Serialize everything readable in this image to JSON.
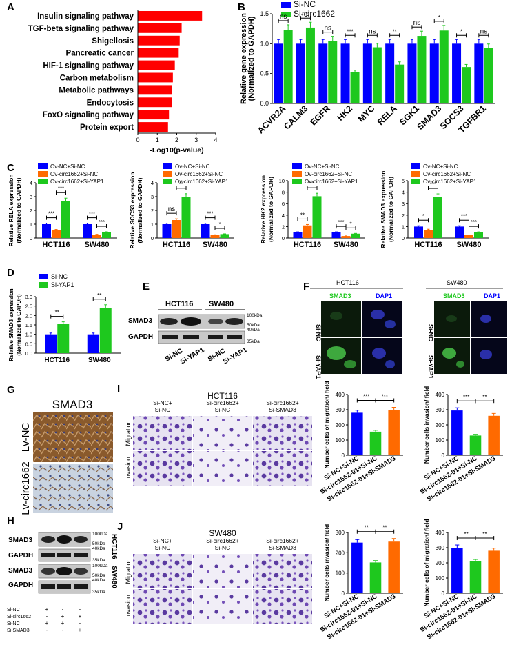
{
  "panel_letters": {
    "A": "A",
    "B": "B",
    "C": "C",
    "D": "D",
    "E": "E",
    "F": "F",
    "G": "G",
    "H": "H",
    "I": "I",
    "J": "J"
  },
  "colors": {
    "red": "#ff0000",
    "blue": "#0000ff",
    "green": "#1ec81e",
    "orange": "#ff6a00",
    "black": "#000000"
  },
  "chart_data": [
    {
      "id": "A",
      "type": "bar",
      "orientation": "horizontal",
      "categories": [
        "Insulin signaling pathway",
        "TGF-beta signaling pathway",
        "Shigellosis",
        "Pancreatic cancer",
        "HIF-1 signaling pathway",
        "Carbon metabolism",
        "Metabolic pathways",
        "Endocytosis",
        "FoxO signaling pathway",
        "Protein export"
      ],
      "values": [
        3.3,
        2.25,
        2.15,
        2.1,
        1.9,
        1.8,
        1.75,
        1.75,
        1.6,
        1.55
      ],
      "xlabel": "-Log10(p-value)",
      "xlim": [
        0,
        4
      ],
      "xticks": [
        "0",
        "1",
        "2",
        "3",
        "4"
      ],
      "color": "#ff0000"
    },
    {
      "id": "B",
      "type": "bar",
      "categories": [
        "ACVR2A",
        "CALM3",
        "EGFR",
        "HK2",
        "MYC",
        "RELA",
        "SGK1",
        "SMAD3",
        "SOCS3",
        "TGFBR1"
      ],
      "series": [
        {
          "name": "Si-NC",
          "values": [
            1,
            1,
            1,
            1,
            1,
            1,
            1,
            1,
            1,
            1
          ]
        },
        {
          "name": "Si-circ1662",
          "values": [
            1.23,
            1.27,
            1.05,
            0.52,
            0.94,
            0.65,
            1.13,
            1.22,
            0.61,
            0.93
          ]
        }
      ],
      "significance": [
        "ns",
        "ns",
        "ns",
        "***",
        "ns",
        "**",
        "ns",
        "*",
        "*",
        "ns"
      ],
      "ylabel": "Relative gene expression\n(Normalized to GAPDH)",
      "ylim": [
        0,
        1.5
      ],
      "yticks": [
        "0.0",
        "0.5",
        "1.0",
        "1.5"
      ]
    },
    {
      "id": "C1",
      "type": "bar",
      "categories": [
        "HCT116",
        "SW480"
      ],
      "series": [
        {
          "name": "Ov-NC+Si-NC",
          "values": [
            1,
            1
          ]
        },
        {
          "name": "Ov-circ1662+Si-NC",
          "values": [
            0.58,
            0.25
          ]
        },
        {
          "name": "Ov-circ1662+Si-YAP1",
          "values": [
            2.7,
            0.42
          ]
        }
      ],
      "ylabel": "Relative RELA expression\n(Normalized to GAPDH)",
      "ylim": [
        0,
        4
      ],
      "yticks": [
        "0",
        "1",
        "2",
        "3",
        "4"
      ],
      "sig": [
        "***",
        "***",
        "***",
        "***"
      ]
    },
    {
      "id": "C2",
      "type": "bar",
      "categories": [
        "HCT116",
        "SW480"
      ],
      "series": [
        {
          "name": "Ov-NC+Si-NC",
          "values": [
            1,
            1
          ]
        },
        {
          "name": "Ov-circ1662+Si-NC",
          "values": [
            1.3,
            0.22
          ]
        },
        {
          "name": "Ov-circ1662+Si-YAP1",
          "values": [
            3.0,
            0.28
          ]
        }
      ],
      "ylabel": "Relative SOCS3 expression\n(Normalized to GAPDH)",
      "ylim": [
        0,
        4
      ],
      "yticks": [
        "0",
        "1",
        "2",
        "3",
        "4"
      ],
      "sig": [
        "ns",
        "**",
        "***",
        "*"
      ]
    },
    {
      "id": "C3",
      "type": "bar",
      "categories": [
        "HCT116",
        "SW480"
      ],
      "series": [
        {
          "name": "Ov-NC+Si-NC",
          "values": [
            1,
            1
          ]
        },
        {
          "name": "Ov-circ1662+Si-NC",
          "values": [
            2.2,
            0.35
          ]
        },
        {
          "name": "Ov-circ1662+Si-YAP1",
          "values": [
            7.3,
            0.75
          ]
        }
      ],
      "ylabel": "Relative HK2 expression\n(Normalized to GAPDH)",
      "ylim": [
        0,
        10
      ],
      "yticks": [
        "0",
        "2",
        "4",
        "6",
        "8",
        "10"
      ],
      "sig": [
        "**",
        "**",
        "***",
        "*"
      ]
    },
    {
      "id": "C4",
      "type": "bar",
      "categories": [
        "HCT116",
        "SW480"
      ],
      "series": [
        {
          "name": "Ov-NC+Si-NC",
          "values": [
            1,
            1
          ]
        },
        {
          "name": "Ov-circ1662+Si-NC",
          "values": [
            0.72,
            0.25
          ]
        },
        {
          "name": "Ov-circ1662+Si-YAP1",
          "values": [
            3.6,
            0.5
          ]
        }
      ],
      "ylabel": "Relative SMAD3 expression\n(Normalized to GAPDH)",
      "ylim": [
        0,
        5
      ],
      "yticks": [
        "0",
        "1",
        "2",
        "3",
        "4",
        "5"
      ],
      "sig": [
        "*",
        "***",
        "***",
        "***"
      ]
    },
    {
      "id": "D",
      "type": "bar",
      "categories": [
        "HCT116",
        "SW480"
      ],
      "series": [
        {
          "name": "Si-NC",
          "values": [
            1,
            1
          ]
        },
        {
          "name": "Si-YAP1",
          "values": [
            1.55,
            2.4
          ]
        }
      ],
      "sig": [
        "**",
        "**"
      ],
      "ylabel": "Relative SMAD3 expression\n(Normalized to GAPDH)",
      "ylim": [
        0,
        3
      ],
      "yticks": [
        "0.0",
        "0.5",
        "1.0",
        "1.5",
        "2.0",
        "2.5",
        "3.0"
      ]
    },
    {
      "id": "I1",
      "type": "bar",
      "categories": [
        "Si-NC+Si-NC",
        "Si-circ1662-01+Si-NC",
        "Si-circ1662-01+Si-SMAD3"
      ],
      "values": [
        280,
        155,
        298
      ],
      "ylabel": "Number cells of migration/ field",
      "ylim": [
        0,
        400
      ],
      "yticks": [
        "0",
        "100",
        "200",
        "300",
        "400"
      ],
      "sig": [
        "***",
        "***"
      ]
    },
    {
      "id": "I2",
      "type": "bar",
      "categories": [
        "Si-NC+Si-NC",
        "Si-circ1662-01+Si-NC",
        "Si-circ1662-01+Si-SMAD3"
      ],
      "values": [
        295,
        130,
        260
      ],
      "ylabel": "Number cells invasion/ field",
      "ylim": [
        0,
        400
      ],
      "yticks": [
        "0",
        "100",
        "200",
        "300",
        "400"
      ],
      "sig": [
        "***",
        "**"
      ]
    },
    {
      "id": "J1",
      "type": "bar",
      "categories": [
        "Si-NC+Si-NC",
        "Si-circ1662-01+Si-NC",
        "Si-circ1662-01+Si-SMAD3"
      ],
      "values": [
        250,
        152,
        255
      ],
      "ylabel": "Number cells invasion/ field",
      "ylim": [
        0,
        300
      ],
      "yticks": [
        "0",
        "100",
        "200",
        "300"
      ],
      "sig": [
        "**",
        "**"
      ]
    },
    {
      "id": "J2",
      "type": "bar",
      "categories": [
        "Si-NC+Si-NC",
        "Si-circ1662-01+Si-NC",
        "Si-circ1662-01+Si-SMAD3"
      ],
      "values": [
        300,
        210,
        280
      ],
      "ylabel": "Number cells of migration/ field",
      "ylim": [
        0,
        400
      ],
      "yticks": [
        "0",
        "100",
        "200",
        "300",
        "400"
      ],
      "sig": [
        "**",
        "**"
      ]
    }
  ],
  "panel_E": {
    "ladder": [
      "100kDa",
      "50kDa",
      "40kDa",
      "35kDa"
    ],
    "bands": [
      "SMAD3",
      "GAPDH"
    ],
    "cells": [
      "HCT116",
      "SW480"
    ],
    "lanes": [
      "Si-NC",
      "Si-YAP1",
      "Si-NC",
      "Si-YAP1"
    ]
  },
  "panel_F": {
    "cells": [
      "HCT116",
      "SW480"
    ],
    "channels": [
      "SMAD3",
      "DAP1"
    ],
    "rows": [
      "Si-NC",
      "Si-YAP1"
    ]
  },
  "panel_G": {
    "title": "SMAD3",
    "rows": [
      "Lv-NC",
      "Lv-circ1662"
    ]
  },
  "panel_H": {
    "bands": [
      "SMAD3",
      "GAPDH",
      "SMAD3",
      "GAPDH"
    ],
    "ladder": [
      "100kDa",
      "50kDa",
      "40kDa",
      "35kDa"
    ],
    "cells": [
      "HCT116",
      "SW480"
    ],
    "conditions": [
      {
        "label": "Si-NC",
        "marks": [
          "+",
          "-",
          "-"
        ]
      },
      {
        "label": "Si-circ1662",
        "marks": [
          "-",
          "+",
          "+"
        ]
      },
      {
        "label": "Si-NC",
        "marks": [
          "+",
          "+",
          "-"
        ]
      },
      {
        "label": "Si-SMAD3",
        "marks": [
          "-",
          "-",
          "+"
        ]
      }
    ]
  },
  "panel_I": {
    "title": "HCT116",
    "cols": [
      "Si-NC+\nSi-NC",
      "Si-circ1662+\nSi-NC",
      "Si-circ1662+\nSi-SMAD3"
    ],
    "rows": [
      "Migration",
      "Invasion"
    ]
  },
  "panel_J": {
    "title": "SW480",
    "cols": [
      "Si-NC+\nSi-NC",
      "Si-circ1662+\nSi-NC",
      "Si-circ1662+\nSi-SMAD3"
    ],
    "rows": [
      "Migration",
      "Invasion"
    ]
  }
}
